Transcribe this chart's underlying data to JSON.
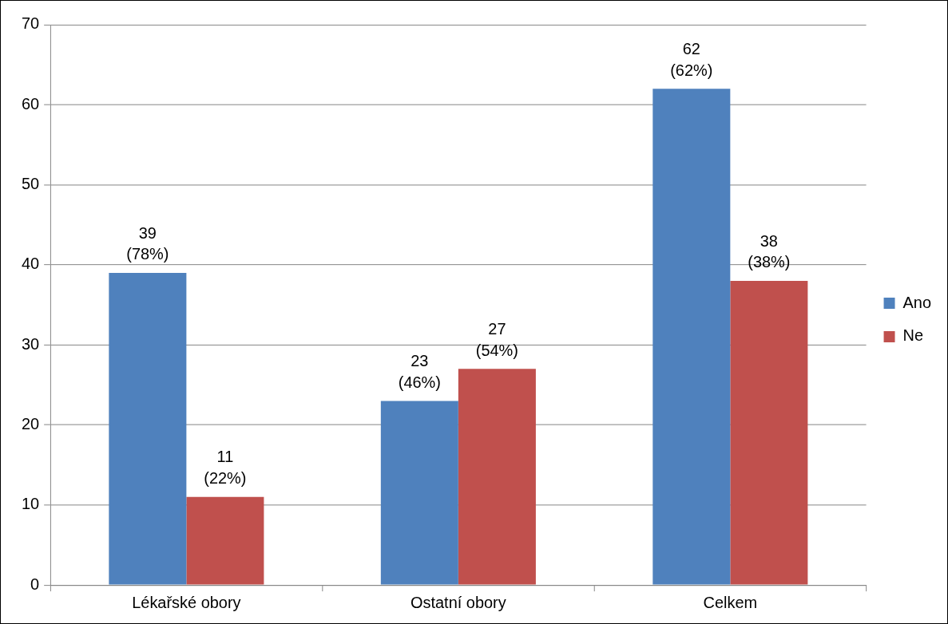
{
  "chart_data": {
    "type": "bar",
    "categories": [
      "Lékařské obory",
      "Ostatní obory",
      "Celkem"
    ],
    "series": [
      {
        "name": "Ano",
        "color": "#4f81bd",
        "values": [
          39,
          23,
          62
        ],
        "value_labels": [
          "39 (78%)",
          "23 (46%)",
          "62 (62%)"
        ]
      },
      {
        "name": "Ne",
        "color": "#c0504d",
        "values": [
          11,
          27,
          38
        ],
        "value_labels": [
          "11 (22%)",
          "27 (54%)",
          "38 (38%)"
        ]
      }
    ],
    "ylim": [
      0,
      70
    ],
    "yticks": [
      0,
      10,
      20,
      30,
      40,
      50,
      60,
      70
    ],
    "grid": "y",
    "legend": "right"
  }
}
